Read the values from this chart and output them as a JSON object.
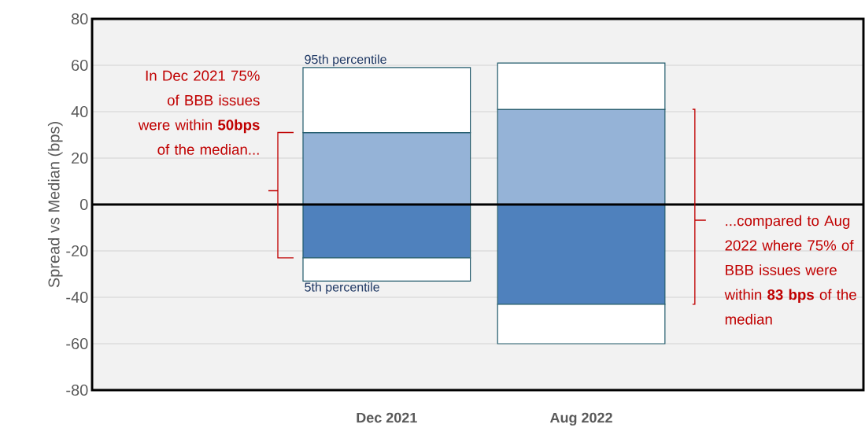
{
  "chart_data": {
    "type": "bar",
    "stacked": true,
    "ylabel": "Spread vs Median (bps)",
    "categories": [
      "Dec 2021",
      "Aug 2022"
    ],
    "series": [
      {
        "color": "#4f81bd",
        "values": [
          -23,
          -43
        ]
      },
      {
        "color": "#ffffff",
        "values": [
          -10,
          -17
        ]
      },
      {
        "color": "#95b3d7",
        "values": [
          31,
          41
        ]
      },
      {
        "color": "#ffffff",
        "values": [
          28,
          20
        ]
      }
    ],
    "ylim": [
      -80,
      80
    ],
    "yticks": [
      -80,
      -60,
      -40,
      -20,
      0,
      20,
      40,
      60,
      80
    ],
    "grid": "y",
    "ref_lines": [
      {
        "axis": "y",
        "value": 0,
        "color": "#000000"
      }
    ],
    "annotations": [
      "95th percentile",
      "5th percentile",
      "In Dec 2021 75% of BBB issues were within **50bps** of the median...",
      "...compared to Aug 2022 where 75% of BBB issues were within **83 bps** of the median"
    ]
  }
}
